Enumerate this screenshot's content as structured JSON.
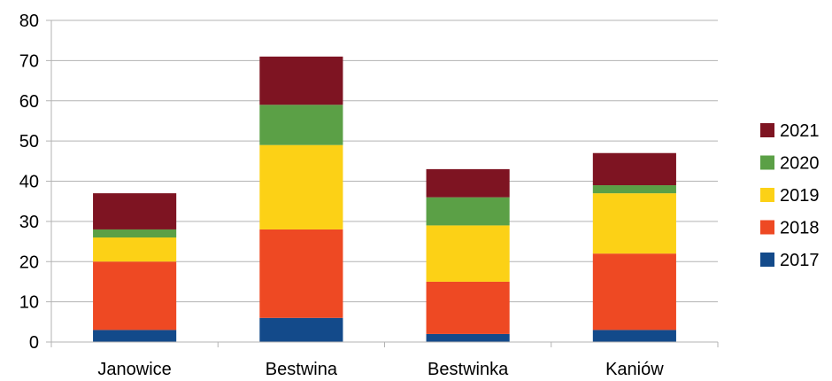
{
  "chart_data": {
    "type": "bar",
    "stacked": true,
    "categories": [
      "Janowice",
      "Bestwina",
      "Bestwinka",
      "Kaniów"
    ],
    "series": [
      {
        "name": "2017",
        "color": "#134a8a",
        "values": [
          3,
          6,
          2,
          3
        ]
      },
      {
        "name": "2018",
        "color": "#ee4923",
        "values": [
          17,
          22,
          13,
          19
        ]
      },
      {
        "name": "2019",
        "color": "#fcd116",
        "values": [
          6,
          21,
          14,
          15
        ]
      },
      {
        "name": "2020",
        "color": "#5ba046",
        "values": [
          2,
          10,
          7,
          2
        ]
      },
      {
        "name": "2021",
        "color": "#7e1422",
        "values": [
          9,
          12,
          7,
          8
        ]
      }
    ],
    "ylim": [
      0,
      80
    ],
    "yticks": [
      "0",
      "10",
      "20",
      "30",
      "40",
      "50",
      "60",
      "70",
      "80"
    ],
    "grid": true,
    "legend_position": "right",
    "legend_order": [
      "2021",
      "2020",
      "2019",
      "2018",
      "2017"
    ]
  }
}
